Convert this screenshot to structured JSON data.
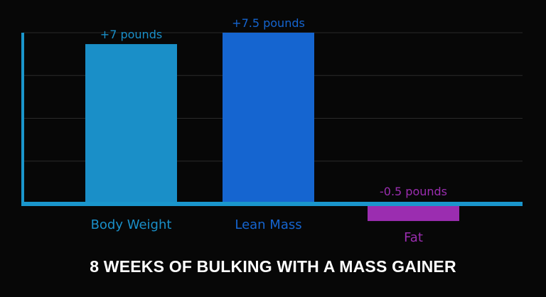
{
  "chart_data": {
    "type": "bar",
    "title": "8 WEEKS OF BULKING WITH A MASS GAINER",
    "categories": [
      "Body Weight",
      "Lean Mass",
      "Fat"
    ],
    "values": [
      7,
      7.5,
      -0.5
    ],
    "data_labels": [
      "+7 pounds",
      "+7.5 pounds",
      "-0.5 pounds"
    ],
    "colors": [
      "#1a8fc8",
      "#1565d0",
      "#9b2db0"
    ],
    "axis_color": "#1a96cc",
    "grid_color": "#2a2a2a",
    "background": "#070707",
    "ylim": [
      -0.5,
      7.5
    ],
    "grid": true,
    "legend": "none"
  }
}
